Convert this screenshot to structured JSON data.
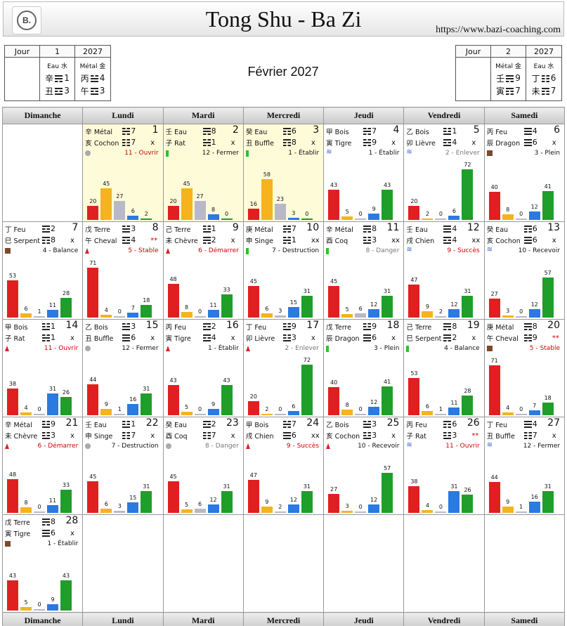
{
  "header": {
    "title": "Tong Shu - Ba Zi",
    "url": "https://www.bazi-coaching.com",
    "logo": "B."
  },
  "left_box": {
    "jour": "Jour",
    "day": "1",
    "year": "2027",
    "top_el": "Eau 水",
    "year_el": "Métal 金",
    "d_stem": "辛",
    "d_num": "1",
    "d_branch": "丑",
    "d_num2": "3",
    "y_stem": "丙",
    "y_num": "4",
    "y_branch": "午",
    "y_num2": "3"
  },
  "right_box": {
    "jour": "Jour",
    "day": "2",
    "year": "2027",
    "top_el": "Métal 金",
    "year_el": "Eau 水",
    "d_stem": "壬",
    "d_num": "9",
    "d_branch": "寅",
    "d_num2": "7",
    "y_stem": "丁",
    "y_num": "6",
    "y_branch": "未",
    "y_num2": "7"
  },
  "month": "Février 2027",
  "weekdays": [
    "Dimanche",
    "Lundi",
    "Mardi",
    "Mercredi",
    "Jeudi",
    "Vendredi",
    "Samedi"
  ],
  "colors": {
    "red": "#e02020",
    "yellow": "#f5b31f",
    "gray": "#b8b8c8",
    "blue": "#2a7ae0",
    "green": "#1f9e2a"
  },
  "days": [
    {
      "col": 1,
      "row": 0,
      "hl": true,
      "s": "辛",
      "sn": "Métal",
      "b": "亥",
      "bn": "Cochon",
      "h1": 7,
      "h2": 7,
      "m": "x",
      "day": "1",
      "off": "circ",
      "ofc": "11 - Ouvrir",
      "ofcc": "red",
      "v": [
        20,
        45,
        27,
        6,
        2
      ]
    },
    {
      "col": 2,
      "row": 0,
      "hl": true,
      "s": "壬",
      "sn": "Eau",
      "b": "子",
      "bn": "Rat",
      "h1": 8,
      "h2": 1,
      "m": "x",
      "day": "2",
      "off": "gr",
      "ofc": "12 - Fermer",
      "ofcc": "",
      "v": [
        20,
        45,
        27,
        8,
        0
      ]
    },
    {
      "col": 3,
      "row": 0,
      "hl": true,
      "s": "癸",
      "sn": "Eau",
      "b": "丑",
      "bn": "Buffle",
      "h1": 6,
      "h2": 8,
      "m": "x",
      "day": "3",
      "off": "gr",
      "ofc": "1 - Établir",
      "ofcc": "",
      "v": [
        16,
        58,
        23,
        3,
        0
      ]
    },
    {
      "col": 4,
      "row": 0,
      "s": "甲",
      "sn": "Bois",
      "b": "寅",
      "bn": "Tigre",
      "h1": 7,
      "h2": 9,
      "m": "x",
      "day": "4",
      "off": "wav",
      "ofc": "1 - Établir",
      "ofcc": "",
      "v": [
        43,
        5,
        0,
        9,
        43
      ]
    },
    {
      "col": 5,
      "row": 0,
      "s": "乙",
      "sn": "Bois",
      "b": "卯",
      "bn": "Lièvre",
      "h1": 1,
      "h2": 4,
      "m": "x",
      "day": "5",
      "off": "wav",
      "ofc": "2 - Enlever",
      "ofcc": "gray",
      "v": [
        20,
        2,
        0,
        6,
        72
      ]
    },
    {
      "col": 6,
      "row": 0,
      "s": "丙",
      "sn": "Feu",
      "b": "辰",
      "bn": "Dragon",
      "h1": 4,
      "h2": 6,
      "m": "x",
      "day": "6",
      "off": "sq",
      "ofc": "3 - Plein",
      "ofcc": "",
      "v": [
        40,
        8,
        0,
        12,
        41
      ]
    },
    {
      "col": 0,
      "row": 1,
      "s": "丁",
      "sn": "Feu",
      "b": "巳",
      "bn": "Serpent",
      "h1": 2,
      "h2": 8,
      "m": "x",
      "day": "7",
      "off": "sq",
      "ofc": "4 - Balance",
      "ofcc": "",
      "v": [
        53,
        6,
        1,
        11,
        28
      ]
    },
    {
      "col": 1,
      "row": 1,
      "s": "戊",
      "sn": "Terre",
      "b": "午",
      "bn": "Cheval",
      "h1": 3,
      "h2": 4,
      "m": "**",
      "day": "8",
      "off": "tri",
      "ofc": "5 - Stable",
      "ofcc": "red",
      "v": [
        71,
        4,
        0,
        7,
        18
      ]
    },
    {
      "col": 2,
      "row": 1,
      "s": "己",
      "sn": "Terre",
      "b": "未",
      "bn": "Chèvre",
      "h1": 1,
      "h2": 2,
      "m": "x",
      "day": "9",
      "off": "tri",
      "ofc": "6 - Démarrer",
      "ofcc": "red",
      "v": [
        48,
        8,
        0,
        11,
        33
      ]
    },
    {
      "col": 3,
      "row": 1,
      "s": "庚",
      "sn": "Métal",
      "b": "申",
      "bn": "Singe",
      "h1": 7,
      "h2": 1,
      "m": "xx",
      "day": "10",
      "off": "gr",
      "ofc": "7 - Destruction",
      "ofcc": "",
      "v": [
        45,
        6,
        3,
        15,
        31
      ]
    },
    {
      "col": 4,
      "row": 1,
      "s": "辛",
      "sn": "Métal",
      "b": "酉",
      "bn": "Coq",
      "h1": 8,
      "h2": 3,
      "m": "xx",
      "day": "11",
      "off": "gr",
      "ofc": "8 - Danger",
      "ofcc": "gray",
      "v": [
        45,
        5,
        6,
        12,
        31
      ]
    },
    {
      "col": 5,
      "row": 1,
      "s": "壬",
      "sn": "Eau",
      "b": "戌",
      "bn": "Chien",
      "h1": 4,
      "h2": 4,
      "m": "xx",
      "day": "12",
      "off": "wav",
      "ofc": "9 - Succès",
      "ofcc": "red",
      "v": [
        47,
        9,
        2,
        12,
        31
      ]
    },
    {
      "col": 6,
      "row": 1,
      "s": "癸",
      "sn": "Eau",
      "b": "亥",
      "bn": "Cochon",
      "h1": 6,
      "h2": 6,
      "m": "x",
      "day": "13",
      "off": "wav",
      "ofc": "10 - Recevoir",
      "ofcc": "",
      "v": [
        27,
        3,
        0,
        12,
        57
      ]
    },
    {
      "col": 0,
      "row": 2,
      "s": "甲",
      "sn": "Bois",
      "b": "子",
      "bn": "Rat",
      "h1": 1,
      "h2": 1,
      "m": "x",
      "day": "14",
      "off": "tri",
      "ofc": "11 - Ouvrir",
      "ofcc": "red",
      "v": [
        38,
        4,
        0,
        31,
        26
      ]
    },
    {
      "col": 1,
      "row": 2,
      "s": "乙",
      "sn": "Bois",
      "b": "丑",
      "bn": "Buffle",
      "h1": 3,
      "h2": 6,
      "m": "x",
      "day": "15",
      "off": "circ",
      "ofc": "12 - Fermer",
      "ofcc": "",
      "v": [
        44,
        9,
        1,
        16,
        31
      ]
    },
    {
      "col": 2,
      "row": 2,
      "s": "丙",
      "sn": "Feu",
      "b": "寅",
      "bn": "Tigre",
      "h1": 2,
      "h2": 4,
      "m": "x",
      "day": "16",
      "off": "tri",
      "ofc": "1 - Établir",
      "ofcc": "",
      "v": [
        43,
        5,
        0,
        9,
        43
      ]
    },
    {
      "col": 3,
      "row": 2,
      "s": "丁",
      "sn": "Feu",
      "b": "卯",
      "bn": "Lièvre",
      "h1": 9,
      "h2": 3,
      "m": "x",
      "day": "17",
      "off": "tri",
      "ofc": "2 - Enlever",
      "ofcc": "gray",
      "v": [
        20,
        2,
        0,
        6,
        72
      ]
    },
    {
      "col": 4,
      "row": 2,
      "s": "戊",
      "sn": "Terre",
      "b": "辰",
      "bn": "Dragon",
      "h1": 9,
      "h2": 6,
      "m": "x",
      "day": "18",
      "off": "gr",
      "ofc": "3 - Plein",
      "ofcc": "",
      "v": [
        40,
        8,
        0,
        12,
        41
      ]
    },
    {
      "col": 5,
      "row": 2,
      "s": "己",
      "sn": "Terre",
      "b": "巳",
      "bn": "Serpent",
      "h1": 8,
      "h2": 2,
      "m": "x",
      "day": "19",
      "off": "gr",
      "ofc": "4 - Balance",
      "ofcc": "",
      "v": [
        53,
        6,
        1,
        11,
        28
      ]
    },
    {
      "col": 6,
      "row": 2,
      "s": "庚",
      "sn": "Métal",
      "b": "午",
      "bn": "Cheval",
      "h1": 8,
      "h2": 9,
      "m": "**",
      "day": "20",
      "off": "sq",
      "ofc": "5 - Stable",
      "ofcc": "red",
      "v": [
        71,
        4,
        0,
        7,
        18
      ]
    },
    {
      "col": 0,
      "row": 3,
      "s": "辛",
      "sn": "Métal",
      "b": "未",
      "bn": "Chèvre",
      "h1": 9,
      "h2": 3,
      "m": "x",
      "day": "21",
      "off": "tri",
      "ofc": "6 - Démarrer",
      "ofcc": "red",
      "v": [
        48,
        8,
        0,
        11,
        33
      ]
    },
    {
      "col": 1,
      "row": 3,
      "s": "壬",
      "sn": "Eau",
      "b": "申",
      "bn": "Singe",
      "h1": 1,
      "h2": 7,
      "m": "x",
      "day": "22",
      "off": "circ",
      "ofc": "7 - Destruction",
      "ofcc": "",
      "v": [
        45,
        6,
        3,
        15,
        31
      ]
    },
    {
      "col": 2,
      "row": 3,
      "s": "癸",
      "sn": "Eau",
      "b": "酉",
      "bn": "Coq",
      "h1": 2,
      "h2": 7,
      "m": "x",
      "day": "23",
      "off": "circ",
      "ofc": "8 - Danger",
      "ofcc": "gray",
      "v": [
        45,
        5,
        6,
        12,
        31
      ]
    },
    {
      "col": 3,
      "row": 3,
      "s": "甲",
      "sn": "Bois",
      "b": "戌",
      "bn": "Chien",
      "h1": 7,
      "h2": 6,
      "m": "xx",
      "day": "24",
      "off": "tri",
      "ofc": "9 - Succès",
      "ofcc": "red",
      "v": [
        47,
        9,
        2,
        12,
        31
      ]
    },
    {
      "col": 4,
      "row": 3,
      "s": "乙",
      "sn": "Bois",
      "b": "亥",
      "bn": "Cochon",
      "h1": 3,
      "h2": 3,
      "m": "x",
      "day": "25",
      "off": "tri",
      "ofc": "10 - Recevoir",
      "ofcc": "",
      "v": [
        27,
        3,
        0,
        12,
        57
      ]
    },
    {
      "col": 5,
      "row": 3,
      "s": "丙",
      "sn": "Feu",
      "b": "子",
      "bn": "Rat",
      "h1": 6,
      "h2": 3,
      "m": "**",
      "day": "26",
      "off": "wav",
      "ofc": "11 - Ouvrir",
      "ofcc": "red",
      "v": [
        38,
        4,
        0,
        31,
        26
      ]
    },
    {
      "col": 6,
      "row": 3,
      "s": "丁",
      "sn": "Feu",
      "b": "丑",
      "bn": "Buffle",
      "h1": 4,
      "h2": 7,
      "m": "x",
      "day": "27",
      "off": "wav",
      "ofc": "12 - Fermer",
      "ofcc": "",
      "v": [
        44,
        9,
        1,
        16,
        31
      ]
    },
    {
      "col": 0,
      "row": 4,
      "s": "戊",
      "sn": "Terre",
      "b": "寅",
      "bn": "Tigre",
      "h1": 8,
      "h2": 6,
      "m": "x",
      "day": "28",
      "off": "sq",
      "ofc": "1 - Établir",
      "ofcc": "",
      "v": [
        43,
        5,
        0,
        9,
        43
      ]
    }
  ]
}
